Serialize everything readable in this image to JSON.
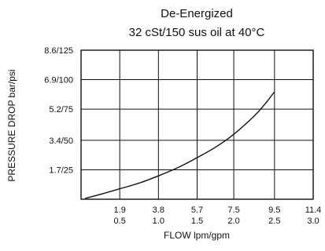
{
  "chart_data": {
    "type": "line",
    "title": "De-Energized",
    "subtitle": "32 cSt/150 sus oil at 40°C",
    "xlabel": "FLOW lpm/gpm",
    "ylabel": "PRESSURE DROP bar/psi",
    "xlim": [
      0,
      11.4
    ],
    "ylim": [
      0,
      8.6
    ],
    "x_ticks": [
      {
        "value": 1.9,
        "label1": "1.9",
        "label2": "0.5"
      },
      {
        "value": 3.8,
        "label1": "3.8",
        "label2": "1.0"
      },
      {
        "value": 5.7,
        "label1": "5.7",
        "label2": "1.5"
      },
      {
        "value": 7.5,
        "label1": "7.5",
        "label2": "2.0"
      },
      {
        "value": 9.5,
        "label1": "9.5",
        "label2": "2.5"
      },
      {
        "value": 11.4,
        "label1": "11.4",
        "label2": "3.0"
      }
    ],
    "y_ticks": [
      {
        "value": 1.7,
        "label": "1.7/25"
      },
      {
        "value": 3.4,
        "label": "3.4/50"
      },
      {
        "value": 5.2,
        "label": "5.2/75"
      },
      {
        "value": 6.9,
        "label": "6.9/100"
      },
      {
        "value": 8.6,
        "label": "8.6/125"
      }
    ],
    "grid": true,
    "series": [
      {
        "x": [
          0.2,
          1.0,
          1.9,
          2.9,
          3.8,
          4.8,
          5.7,
          6.6,
          7.5,
          8.5,
          9.0,
          9.5
        ],
        "y": [
          0.05,
          0.3,
          0.6,
          0.95,
          1.35,
          1.85,
          2.4,
          3.0,
          3.75,
          4.8,
          5.45,
          6.2
        ]
      }
    ],
    "colors": {
      "line": "#111111",
      "grid": "#111111",
      "frame": "#111111"
    }
  }
}
